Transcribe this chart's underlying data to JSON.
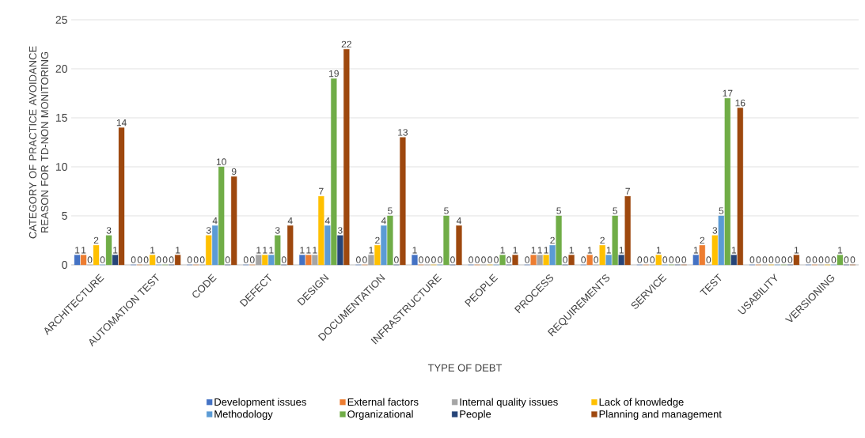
{
  "chart_data": {
    "type": "bar",
    "xlabel": "TYPE OF DEBT",
    "ylabel": "CATEGORY OF PRACTICE AVOIDANCE REASON FOR TD-NON MONITORING",
    "categories": [
      "ARCHITECTURE",
      "AUTOMATION TEST",
      "CODE",
      "DEFECT",
      "DESIGN",
      "DOCUMENTATION",
      "INFRASTRUCTURE",
      "PEOPLE",
      "PROCESS",
      "REQUIREMENTS",
      "SERVICE",
      "TEST",
      "USABILITY",
      "VERSIONING"
    ],
    "series": [
      {
        "name": "Development issues",
        "color": "#4472c4",
        "values": [
          1,
          0,
          0,
          0,
          1,
          0,
          1,
          0,
          0,
          0,
          0,
          1,
          0,
          0
        ]
      },
      {
        "name": "External factors",
        "color": "#ed7d31",
        "values": [
          1,
          0,
          0,
          0,
          1,
          0,
          0,
          0,
          1,
          1,
          0,
          2,
          0,
          0
        ]
      },
      {
        "name": "Internal quality issues",
        "color": "#a5a5a5",
        "values": [
          0,
          0,
          0,
          1,
          1,
          1,
          0,
          0,
          1,
          0,
          0,
          0,
          0,
          0
        ]
      },
      {
        "name": "Lack of knowledge",
        "color": "#ffc000",
        "values": [
          2,
          1,
          3,
          1,
          7,
          2,
          0,
          0,
          1,
          2,
          1,
          3,
          0,
          0
        ]
      },
      {
        "name": "Methodology",
        "color": "#5b9bd5",
        "values": [
          0,
          0,
          4,
          1,
          4,
          4,
          0,
          0,
          2,
          1,
          0,
          5,
          0,
          0
        ]
      },
      {
        "name": "Organizational",
        "color": "#70ad47",
        "values": [
          3,
          0,
          10,
          3,
          19,
          5,
          5,
          1,
          5,
          5,
          0,
          17,
          0,
          1
        ]
      },
      {
        "name": "People",
        "color": "#264478",
        "values": [
          1,
          0,
          0,
          0,
          3,
          0,
          0,
          0,
          0,
          1,
          0,
          1,
          0,
          0
        ]
      },
      {
        "name": "Planning and management",
        "color": "#9e480e",
        "values": [
          14,
          1,
          9,
          4,
          22,
          13,
          4,
          1,
          1,
          7,
          0,
          16,
          1,
          0
        ]
      }
    ],
    "ylim": [
      0,
      25
    ],
    "yticks": [
      0,
      5,
      10,
      15,
      20,
      25
    ],
    "grid": "y",
    "legend": "bottom",
    "data_labels": true
  }
}
